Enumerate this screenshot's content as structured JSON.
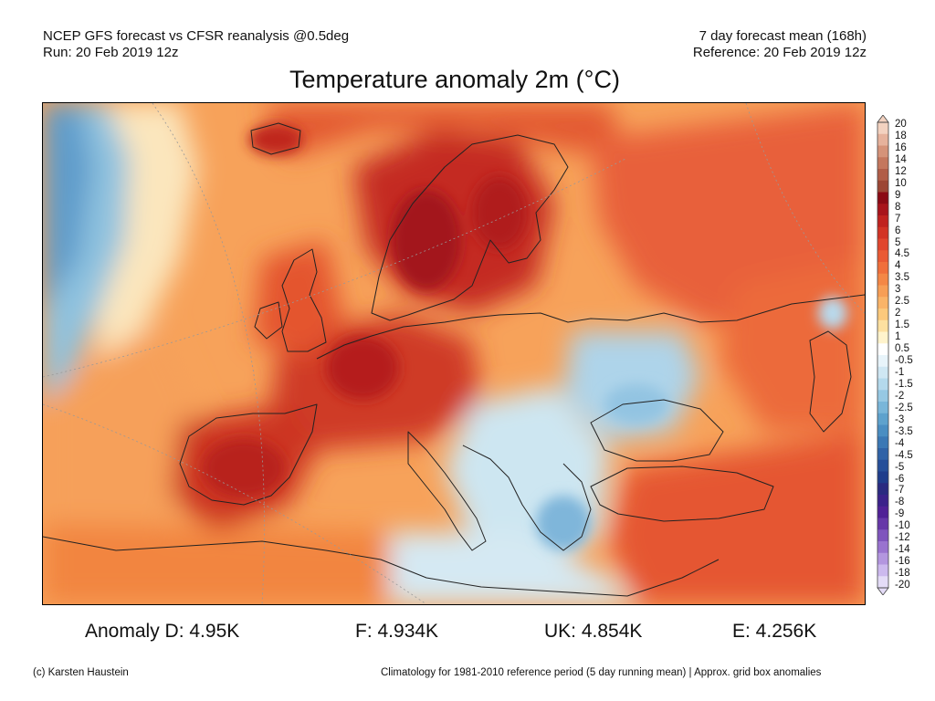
{
  "header": {
    "left_line1": "NCEP GFS forecast vs CFSR reanalysis @0.5deg",
    "left_line2": "Run: 20 Feb 2019 12z",
    "right_line1": "7 day forecast mean (168h)",
    "right_line2": "Reference: 20 Feb 2019 12z"
  },
  "title": "Temperature anomaly 2m (°C)",
  "colorbar": {
    "labels": [
      "20",
      "18",
      "16",
      "14",
      "12",
      "10",
      "9",
      "8",
      "7",
      "6",
      "5",
      "4.5",
      "4",
      "3.5",
      "3",
      "2.5",
      "2",
      "1.5",
      "1",
      "0.5",
      "-0.5",
      "-1",
      "-1.5",
      "-2",
      "-2.5",
      "-3",
      "-3.5",
      "-4",
      "-4.5",
      "-5",
      "-6",
      "-7",
      "-8",
      "-9",
      "-10",
      "-12",
      "-14",
      "-16",
      "-18",
      "-20"
    ],
    "colors": [
      "#f3d2c0",
      "#e6b29c",
      "#d59379",
      "#c4775d",
      "#b15d47",
      "#9c4634",
      "#8b0a14",
      "#a8141b",
      "#c0221f",
      "#d23325",
      "#e1462e",
      "#ea5a34",
      "#f06f3b",
      "#f48746",
      "#f79e56",
      "#fab468",
      "#fcc97c",
      "#fde0a0",
      "#fff3cc",
      "#ffffff",
      "#e8f4fa",
      "#cfe7f3",
      "#b4d9ec",
      "#96c8e3",
      "#79b6d9",
      "#5ea2cd",
      "#4a8ec2",
      "#3b78b5",
      "#2f62a7",
      "#264f99",
      "#1f3d8c",
      "#2a2a80",
      "#3b228a",
      "#502196",
      "#6637a8",
      "#7f55bd",
      "#9973cf",
      "#b396df",
      "#ccb9ee",
      "#e4dcf7"
    ]
  },
  "stats": {
    "germany": "Anomaly D: 4.95K",
    "france": "F: 4.934K",
    "uk": "UK: 4.854K",
    "spain": "E: 4.256K"
  },
  "footer": {
    "credit": "(c) Karsten Haustein",
    "note": "Climatology for 1981-2010 reference period (5 day running mean) | Approx. grid box anomalies"
  }
}
